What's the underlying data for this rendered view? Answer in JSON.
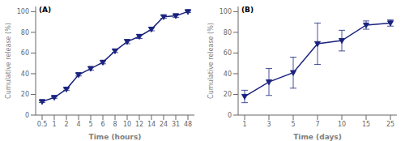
{
  "chart_data": [
    {
      "type": "line",
      "x_label": "Time (hours)",
      "y_label": "Cumulative release (%)",
      "annotation": "(A)",
      "categories": [
        "0.5",
        "1",
        "2",
        "4",
        "5",
        "6",
        "8",
        "10",
        "12",
        "14",
        "24",
        "31",
        "48"
      ],
      "values": [
        13,
        17,
        25,
        39,
        45,
        51,
        62,
        71,
        76,
        83,
        95,
        96,
        100
      ],
      "yerr": [
        0.8,
        0.8,
        1.0,
        1.2,
        1.5,
        1.5,
        1.5,
        2.0,
        2.0,
        1.5,
        1.5,
        1.5,
        0.8
      ],
      "ylim": [
        0,
        105
      ],
      "yticks": [
        0,
        20,
        40,
        60,
        80,
        100
      ],
      "color": "#1a237e",
      "marker": "triangle_down",
      "grid": false
    },
    {
      "type": "line",
      "x_label": "Time (days)",
      "y_label": "Cumulative release (%)",
      "annotation": "(B)",
      "categories": [
        "1",
        "3",
        "5",
        "7",
        "10",
        "15",
        "25"
      ],
      "values": [
        18,
        32,
        41,
        69,
        72,
        87,
        89
      ],
      "yerr": [
        6,
        13,
        15,
        20,
        10,
        4,
        3
      ],
      "ylim": [
        0,
        105
      ],
      "yticks": [
        0,
        20,
        40,
        60,
        80,
        100
      ],
      "color": "#1a237e",
      "marker": "triangle_down",
      "grid": false
    }
  ]
}
